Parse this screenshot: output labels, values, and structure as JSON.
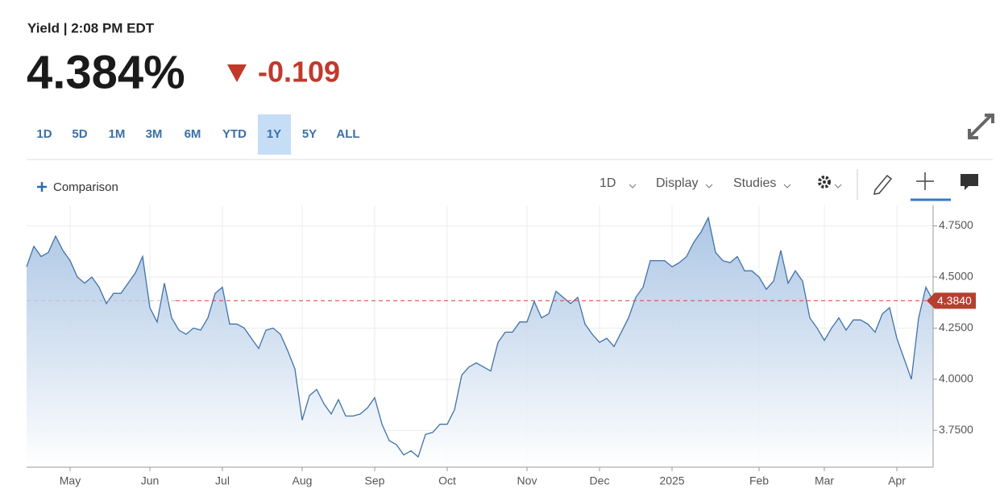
{
  "header": {
    "title": "Yield | 2:08 PM EDT",
    "price": "4.384%",
    "change": "-0.109"
  },
  "ranges": [
    {
      "label": "1D",
      "selected": false
    },
    {
      "label": "5D",
      "selected": false
    },
    {
      "label": "1M",
      "selected": false
    },
    {
      "label": "3M",
      "selected": false
    },
    {
      "label": "6M",
      "selected": false
    },
    {
      "label": "YTD",
      "selected": false
    },
    {
      "label": "1Y",
      "selected": true
    },
    {
      "label": "5Y",
      "selected": false
    },
    {
      "label": "ALL",
      "selected": false
    }
  ],
  "toolbar": {
    "comparison": "Comparison",
    "interval": "1D",
    "display": "Display",
    "studies": "Studies"
  },
  "chart_data": {
    "type": "area",
    "color": "#3f72aa",
    "categories": [
      null,
      null,
      null,
      null,
      null,
      null,
      "May",
      null,
      null,
      null,
      null,
      null,
      null,
      null,
      null,
      null,
      null,
      "Jun",
      null,
      null,
      null,
      null,
      null,
      null,
      null,
      null,
      null,
      "Jul",
      null,
      null,
      null,
      null,
      null,
      null,
      null,
      null,
      null,
      null,
      "Aug",
      null,
      null,
      null,
      null,
      null,
      null,
      null,
      null,
      null,
      "Sep",
      null,
      null,
      null,
      null,
      null,
      null,
      null,
      null,
      null,
      "Oct",
      null,
      null,
      null,
      null,
      null,
      null,
      null,
      null,
      null,
      null,
      "Nov",
      null,
      null,
      null,
      null,
      null,
      null,
      null,
      null,
      null,
      "Dec",
      null,
      null,
      null,
      null,
      null,
      null,
      null,
      null,
      null,
      "2025",
      null,
      null,
      null,
      null,
      null,
      null,
      null,
      null,
      null,
      null,
      null,
      "Feb",
      null,
      null,
      null,
      null,
      null,
      null,
      null,
      null,
      "Mar",
      null,
      null,
      null,
      null,
      null,
      null,
      null,
      null,
      null,
      "Apr",
      null,
      null,
      null,
      null,
      null
    ],
    "values": [
      4.55,
      4.65,
      4.6,
      4.62,
      4.7,
      4.63,
      4.58,
      4.5,
      4.47,
      4.5,
      4.45,
      4.37,
      4.42,
      4.42,
      4.47,
      4.52,
      4.6,
      4.35,
      4.28,
      4.47,
      4.3,
      4.24,
      4.22,
      4.25,
      4.24,
      4.3,
      4.42,
      4.45,
      4.27,
      4.27,
      4.25,
      4.2,
      4.15,
      4.24,
      4.25,
      4.22,
      4.14,
      4.05,
      3.8,
      3.92,
      3.95,
      3.88,
      3.83,
      3.9,
      3.82,
      3.82,
      3.83,
      3.86,
      3.91,
      3.78,
      3.7,
      3.68,
      3.63,
      3.65,
      3.62,
      3.73,
      3.74,
      3.78,
      3.78,
      3.85,
      4.02,
      4.06,
      4.08,
      4.06,
      4.04,
      4.18,
      4.23,
      4.23,
      4.28,
      4.28,
      4.38,
      4.3,
      4.32,
      4.43,
      4.4,
      4.37,
      4.4,
      4.27,
      4.22,
      4.18,
      4.2,
      4.16,
      4.23,
      4.3,
      4.4,
      4.45,
      4.58,
      4.58,
      4.58,
      4.55,
      4.57,
      4.6,
      4.67,
      4.72,
      4.79,
      4.62,
      4.58,
      4.57,
      4.6,
      4.53,
      4.53,
      4.5,
      4.44,
      4.48,
      4.63,
      4.47,
      4.53,
      4.48,
      4.3,
      4.25,
      4.19,
      4.25,
      4.3,
      4.24,
      4.29,
      4.29,
      4.27,
      4.23,
      4.32,
      4.35,
      4.2,
      4.1,
      4.0,
      4.3,
      4.45,
      4.384
    ],
    "ylim": [
      3.57,
      4.85
    ],
    "yticks": [
      {
        "value": 3.75,
        "label": "3.7500"
      },
      {
        "value": 4.0,
        "label": "4.0000"
      },
      {
        "value": 4.25,
        "label": "4.2500"
      },
      {
        "value": 4.5,
        "label": "4.5000"
      },
      {
        "value": 4.75,
        "label": "4.7500"
      }
    ],
    "reference_line": {
      "value": 4.384,
      "label": "4.3840",
      "color": "#d9534f"
    },
    "grid": true
  }
}
